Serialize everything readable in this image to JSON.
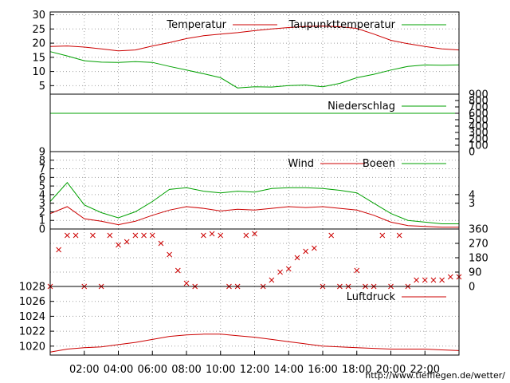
{
  "colors": {
    "temperature": "#cc0000",
    "dewpoint": "#00a000",
    "precipitation": "#00a000",
    "wind": "#cc0000",
    "gusts": "#00a000",
    "wind_direction": "#cc0000",
    "pressure": "#cc0000",
    "grid": "#a0a0a0",
    "axis": "#000000",
    "credit_link": "#cc0000"
  },
  "credit": "http://www.tiefflegen.de/wetter/",
  "chart_data": [
    {
      "type": "line",
      "panel": "temperature",
      "legend": [
        "Temperatur",
        "Taupunkttemperatur"
      ],
      "legend_position": "top-right",
      "grid": true,
      "yticks": [
        5,
        10,
        15,
        20,
        25,
        30
      ],
      "ylim": [
        2,
        31
      ],
      "xlim": [
        0,
        24
      ],
      "series": [
        {
          "name": "Temperatur",
          "x": [
            0,
            1,
            2,
            3,
            4,
            5,
            6,
            7,
            8,
            9,
            10,
            11,
            12,
            13,
            14,
            15,
            16,
            17,
            18,
            19,
            20,
            21,
            22,
            23,
            24
          ],
          "values": [
            18.8,
            19,
            18.6,
            18,
            17.3,
            17.6,
            19,
            20.2,
            21.6,
            22.6,
            23.2,
            23.7,
            24.4,
            25,
            25.5,
            25.9,
            26,
            25.8,
            25.2,
            23.2,
            21,
            19.8,
            18.8,
            18,
            17.6
          ]
        },
        {
          "name": "Taupunkttemperatur",
          "x": [
            0,
            1,
            2,
            3,
            4,
            5,
            6,
            7,
            8,
            9,
            10,
            11,
            12,
            13,
            14,
            15,
            16,
            17,
            18,
            19,
            20,
            21,
            22,
            23,
            24
          ],
          "values": [
            17,
            15.5,
            13.8,
            13.3,
            13.2,
            13.5,
            13.2,
            11.8,
            10.5,
            9.2,
            7.8,
            4.2,
            4.6,
            4.5,
            5,
            5.2,
            4.6,
            5.8,
            7.8,
            9,
            10.5,
            11.8,
            12.3,
            12.2,
            12.3
          ]
        }
      ]
    },
    {
      "type": "line",
      "panel": "precipitation",
      "legend": [
        "Niederschlag"
      ],
      "legend_position": "top-right",
      "yticks_right": [
        0,
        100,
        200,
        300,
        400,
        500,
        600,
        700,
        800,
        900
      ],
      "ylim": [
        0,
        900
      ],
      "xlim": [
        0,
        24
      ],
      "series": [
        {
          "name": "Niederschlag",
          "x": [
            0,
            24
          ],
          "values": [
            600,
            600
          ]
        }
      ]
    },
    {
      "type": "line",
      "panel": "wind",
      "legend": [
        "Wind",
        "Boeen"
      ],
      "legend_position": "top-right",
      "grid": true,
      "yticks_left": [
        0,
        1,
        2,
        3,
        4,
        5,
        6,
        7,
        8,
        9
      ],
      "yticks_right": [
        3,
        4
      ],
      "ylim": [
        0,
        9
      ],
      "xlim": [
        0,
        24
      ],
      "series": [
        {
          "name": "Wind",
          "x": [
            0,
            1,
            2,
            3,
            4,
            5,
            6,
            7,
            8,
            9,
            10,
            11,
            12,
            13,
            14,
            15,
            16,
            17,
            18,
            19,
            20,
            21,
            22,
            23,
            24
          ],
          "values": [
            1.8,
            2.6,
            1.2,
            0.9,
            0.5,
            0.9,
            1.6,
            2.2,
            2.6,
            2.4,
            2.1,
            2.3,
            2.2,
            2.4,
            2.6,
            2.5,
            2.6,
            2.4,
            2.2,
            1.6,
            0.8,
            0.4,
            0.3,
            0.2,
            0.2
          ]
        },
        {
          "name": "Boeen",
          "x": [
            0,
            1,
            2,
            3,
            4,
            5,
            6,
            7,
            8,
            9,
            10,
            11,
            12,
            13,
            14,
            15,
            16,
            17,
            18,
            19,
            20,
            21,
            22,
            23,
            24
          ],
          "values": [
            3.2,
            5.4,
            2.8,
            1.9,
            1.3,
            2,
            3.2,
            4.6,
            4.8,
            4.4,
            4.2,
            4.4,
            4.3,
            4.7,
            4.8,
            4.8,
            4.7,
            4.5,
            4.2,
            3,
            1.8,
            1,
            0.8,
            0.6,
            0.6
          ]
        }
      ]
    },
    {
      "type": "scatter",
      "panel": "wind_direction",
      "yticks_right": [
        0,
        90,
        180,
        270,
        360
      ],
      "ylim": [
        0,
        360
      ],
      "xlim": [
        0,
        24
      ],
      "x": [
        0,
        0.5,
        1,
        1.5,
        2,
        2.5,
        3,
        3.5,
        4,
        4.5,
        5,
        5.5,
        6,
        6.5,
        7,
        7.5,
        8,
        8.5,
        9,
        9.5,
        10,
        10.5,
        11,
        11.5,
        12,
        12.5,
        13,
        13.5,
        14,
        14.5,
        15,
        15.5,
        16,
        16.5,
        17,
        17.5,
        18,
        18.5,
        19,
        19.5,
        20,
        20.5,
        21,
        21.5,
        22,
        22.5,
        23,
        23.5,
        24
      ],
      "values": [
        0,
        230,
        320,
        320,
        0,
        320,
        0,
        320,
        260,
        280,
        320,
        320,
        320,
        270,
        200,
        100,
        20,
        0,
        320,
        330,
        320,
        0,
        0,
        320,
        330,
        0,
        40,
        90,
        110,
        180,
        220,
        240,
        0,
        320,
        0,
        0,
        100,
        0,
        0,
        320,
        0,
        320,
        0,
        40,
        40,
        40,
        40,
        60,
        60
      ]
    },
    {
      "type": "line",
      "panel": "pressure",
      "legend": [
        "Luftdruck"
      ],
      "legend_position": "top-right",
      "yticks": [
        1020,
        1022,
        1024,
        1026,
        1028
      ],
      "ylim": [
        1018.8,
        1028
      ],
      "xlim": [
        0,
        24
      ],
      "xticks": [
        "02:00",
        "04:00",
        "06:00",
        "08:00",
        "10:00",
        "12:00",
        "14:00",
        "16:00",
        "18:00",
        "20:00",
        "22:00"
      ],
      "series": [
        {
          "name": "Luftdruck",
          "x": [
            0,
            1,
            2,
            3,
            4,
            5,
            6,
            7,
            8,
            9,
            10,
            11,
            12,
            13,
            14,
            15,
            16,
            17,
            18,
            19,
            20,
            21,
            22,
            23,
            24
          ],
          "values": [
            1019.2,
            1019.6,
            1019.8,
            1019.9,
            1020.2,
            1020.5,
            1020.9,
            1021.3,
            1021.5,
            1021.6,
            1021.6,
            1021.4,
            1021.2,
            1020.9,
            1020.6,
            1020.3,
            1020,
            1019.9,
            1019.8,
            1019.7,
            1019.6,
            1019.6,
            1019.6,
            1019.5,
            1019.4
          ]
        }
      ]
    }
  ]
}
